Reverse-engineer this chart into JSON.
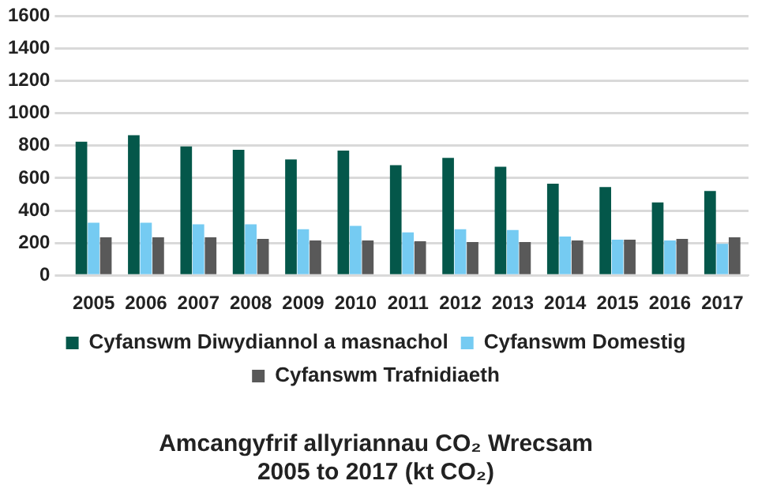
{
  "chart_data": {
    "type": "bar",
    "title": "Amcangyfrif allyriannau CO₂ Wrecsam\n2005 to 2017 (kt CO₂)",
    "categories": [
      "2005",
      "2006",
      "2007",
      "2008",
      "2009",
      "2010",
      "2011",
      "2012",
      "2013",
      "2014",
      "2015",
      "2016",
      "2017"
    ],
    "series": [
      {
        "name": "Cyfanswm Diwydiannol a masnachol",
        "color": "#04574a",
        "values": [
          825,
          865,
          795,
          775,
          715,
          770,
          680,
          725,
          670,
          565,
          545,
          450,
          520
        ]
      },
      {
        "name": "Cyfanswm Domestig",
        "color": "#75cbf2",
        "values": [
          325,
          325,
          315,
          315,
          285,
          305,
          265,
          285,
          280,
          240,
          220,
          215,
          195
        ]
      },
      {
        "name": "Cyfanswm Trafnidiaeth",
        "color": "#595959",
        "values": [
          235,
          235,
          235,
          225,
          215,
          215,
          210,
          205,
          205,
          215,
          220,
          225,
          235
        ]
      }
    ],
    "ylim": [
      0,
      1600
    ],
    "yticks": [
      0,
      200,
      400,
      600,
      800,
      1000,
      1200,
      1400,
      1600
    ],
    "grid": "y",
    "legend": "bottom"
  }
}
